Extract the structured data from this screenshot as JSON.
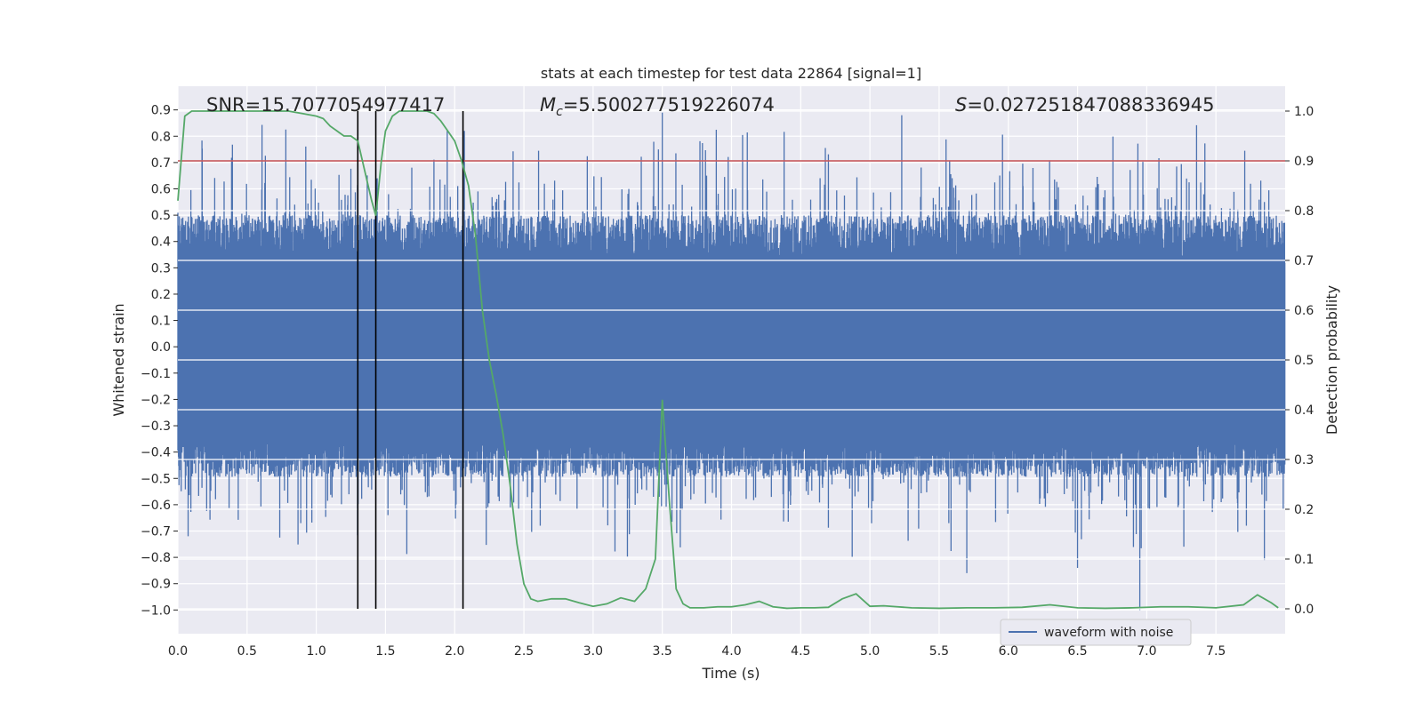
{
  "chart_data": {
    "type": "line",
    "title": "stats at each timestep for test data 22864 [signal=1]",
    "xlabel": "Time (s)",
    "ylabel_left": "Whitened strain",
    "ylabel_right": "Detection probability",
    "xlim": [
      0.0,
      8.0
    ],
    "ylim_left": [
      -1.09,
      0.99
    ],
    "ylim_right": [
      -0.05,
      1.05
    ],
    "x_ticks": [
      "0.0",
      "0.5",
      "1.0",
      "1.5",
      "2.0",
      "2.5",
      "3.0",
      "3.5",
      "4.0",
      "4.5",
      "5.0",
      "5.5",
      "6.0",
      "6.5",
      "7.0",
      "7.5"
    ],
    "x_tick_values": [
      0.0,
      0.5,
      1.0,
      1.5,
      2.0,
      2.5,
      3.0,
      3.5,
      4.0,
      4.5,
      5.0,
      5.5,
      6.0,
      6.5,
      7.0,
      7.5
    ],
    "y_left_ticks": [
      "0.9",
      "0.8",
      "0.7",
      "0.6",
      "0.5",
      "0.4",
      "0.3",
      "0.2",
      "0.1",
      "0.0",
      "−0.1",
      "−0.2",
      "−0.3",
      "−0.4",
      "−0.5",
      "−0.6",
      "−0.7",
      "−0.8",
      "−0.9",
      "−1.0"
    ],
    "y_left_tick_values": [
      0.9,
      0.8,
      0.7,
      0.6,
      0.5,
      0.4,
      0.3,
      0.2,
      0.1,
      0.0,
      -0.1,
      -0.2,
      -0.3,
      -0.4,
      -0.5,
      -0.6,
      -0.7,
      -0.8,
      -0.9,
      -1.0
    ],
    "y_right_ticks": [
      "1.0",
      "0.9",
      "0.8",
      "0.7",
      "0.6",
      "0.5",
      "0.4",
      "0.3",
      "0.2",
      "0.1",
      "0.0"
    ],
    "y_right_tick_values": [
      1.0,
      0.9,
      0.8,
      0.7,
      0.6,
      0.5,
      0.4,
      0.3,
      0.2,
      0.1,
      0.0
    ],
    "annotations": {
      "snr": "SNR=15.7077054977417",
      "mc_symbol": "M",
      "mc_subscript": "c",
      "mc_value": "=5.500277519226074",
      "s_symbol": "S",
      "s_value": "=0.027251847088336945"
    },
    "threshold_probability": 0.9,
    "vertical_markers": [
      1.3,
      1.43,
      2.06
    ],
    "waveform": {
      "name": "waveform with noise",
      "color": "#4c72b0",
      "typical_range": [
        -0.45,
        0.5
      ],
      "max_peak": 0.89,
      "min_peak": -1.0
    },
    "probability_series": {
      "color": "#55a868",
      "x": [
        0.0,
        0.05,
        0.1,
        0.2,
        0.3,
        0.4,
        0.5,
        0.6,
        0.7,
        0.8,
        0.9,
        1.0,
        1.05,
        1.1,
        1.15,
        1.2,
        1.25,
        1.3,
        1.35,
        1.4,
        1.43,
        1.47,
        1.5,
        1.55,
        1.6,
        1.7,
        1.8,
        1.85,
        1.9,
        1.95,
        2.0,
        2.05,
        2.1,
        2.15,
        2.2,
        2.25,
        2.3,
        2.35,
        2.4,
        2.45,
        2.5,
        2.55,
        2.6,
        2.7,
        2.8,
        2.9,
        3.0,
        3.1,
        3.2,
        3.3,
        3.38,
        3.45,
        3.5,
        3.55,
        3.6,
        3.65,
        3.7,
        3.8,
        3.9,
        4.0,
        4.1,
        4.2,
        4.3,
        4.4,
        4.5,
        4.6,
        4.7,
        4.8,
        4.9,
        5.0,
        5.1,
        5.2,
        5.3,
        5.5,
        5.7,
        5.9,
        6.1,
        6.3,
        6.5,
        6.7,
        6.9,
        7.1,
        7.3,
        7.5,
        7.7,
        7.8,
        7.9,
        7.95
      ],
      "values": [
        0.82,
        0.99,
        1.0,
        1.0,
        1.0,
        1.0,
        1.0,
        1.0,
        1.0,
        1.0,
        0.995,
        0.99,
        0.985,
        0.97,
        0.96,
        0.95,
        0.95,
        0.94,
        0.88,
        0.82,
        0.79,
        0.9,
        0.96,
        0.99,
        1.0,
        1.0,
        1.0,
        0.995,
        0.98,
        0.96,
        0.94,
        0.9,
        0.85,
        0.75,
        0.6,
        0.5,
        0.43,
        0.35,
        0.25,
        0.13,
        0.05,
        0.02,
        0.015,
        0.02,
        0.02,
        0.012,
        0.005,
        0.01,
        0.022,
        0.015,
        0.04,
        0.1,
        0.42,
        0.22,
        0.04,
        0.01,
        0.002,
        0.002,
        0.004,
        0.004,
        0.008,
        0.015,
        0.004,
        0.001,
        0.002,
        0.002,
        0.003,
        0.02,
        0.03,
        0.005,
        0.006,
        0.004,
        0.002,
        0.001,
        0.002,
        0.002,
        0.003,
        0.008,
        0.002,
        0.001,
        0.002,
        0.004,
        0.004,
        0.002,
        0.008,
        0.028,
        0.012,
        0.002
      ]
    },
    "legend": {
      "entries": [
        "waveform with noise"
      ],
      "placement": "lower-right"
    },
    "grid": true
  }
}
